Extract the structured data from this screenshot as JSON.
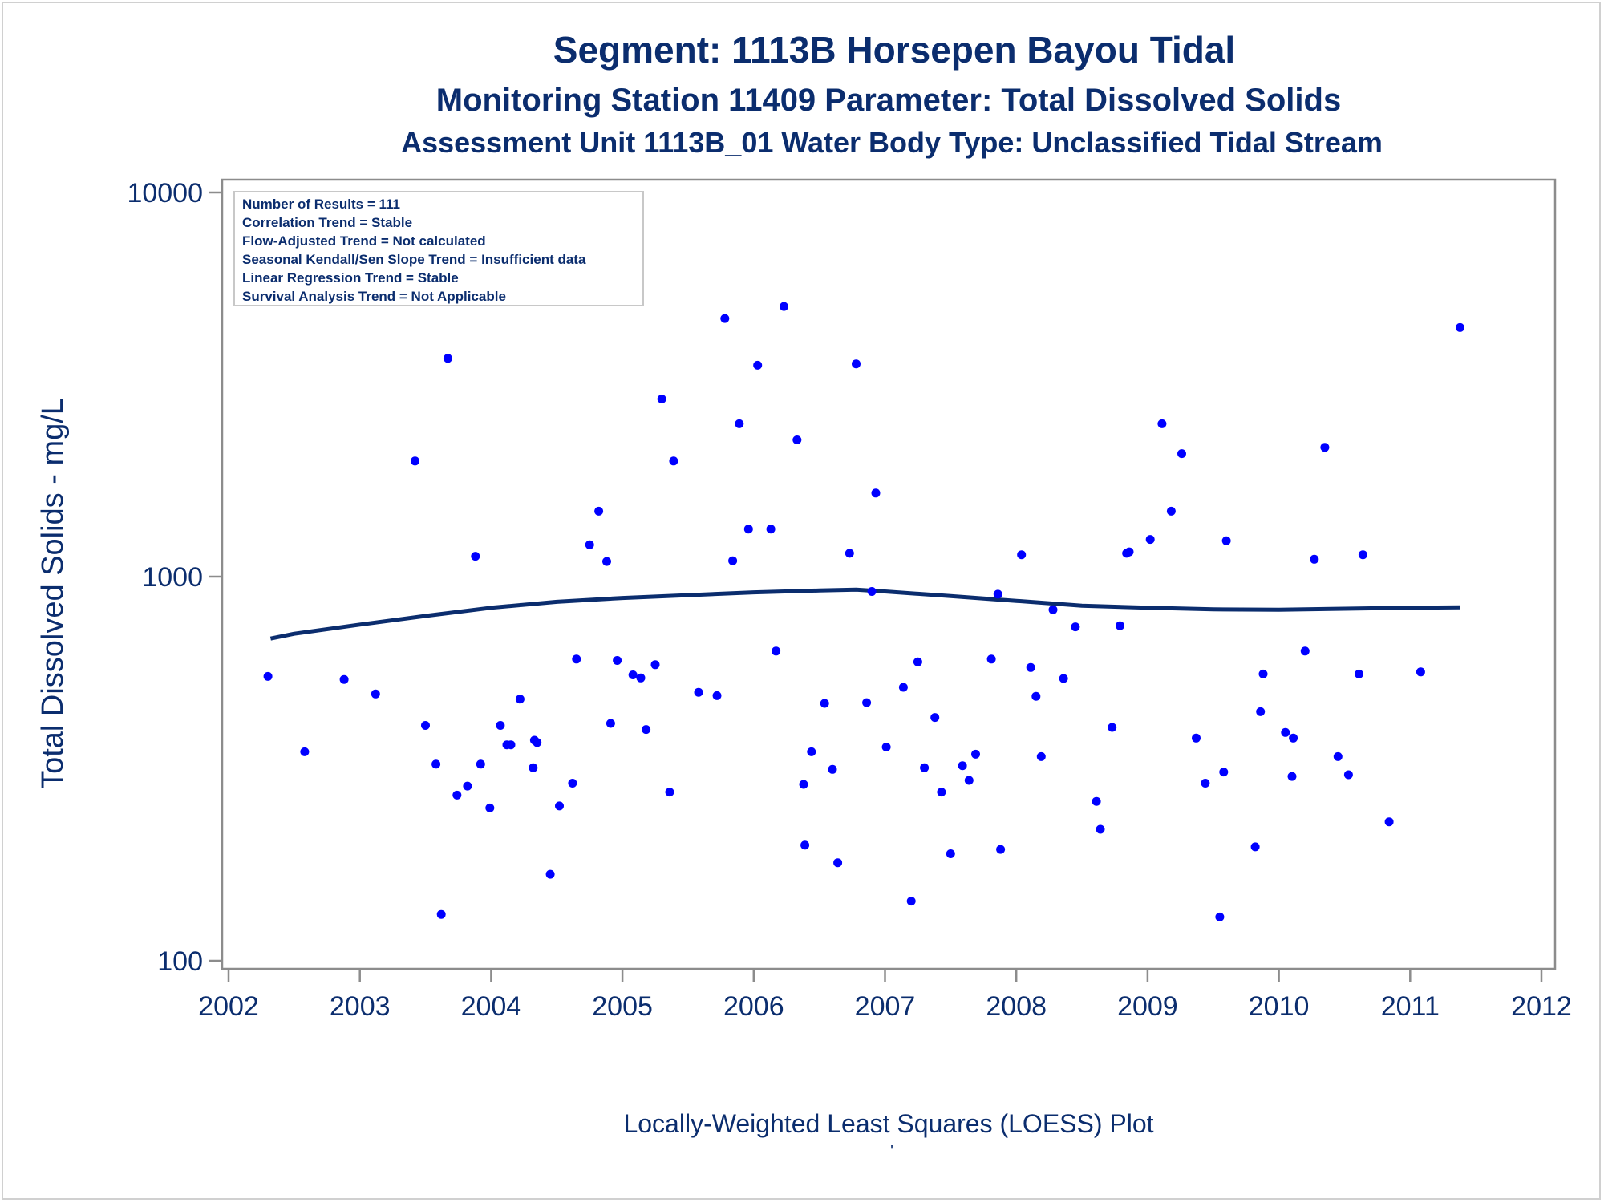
{
  "chart_data": {
    "type": "scatter",
    "title": "Segment: 1113B  Horsepen Bayou Tidal",
    "subtitle": "Monitoring Station 11409 Parameter: Total Dissolved Solids",
    "subtitle2": "Assessment Unit 1113B_01   Water Body Type: Unclassified Tidal Stream",
    "xlabel": "Locally-Weighted Least Squares (LOESS) Plot",
    "ylabel": "Total Dissolved Solids - mg/L",
    "yscale": "log",
    "xlim": [
      2002,
      2012
    ],
    "ylim": [
      100,
      10000
    ],
    "x_ticks": [
      "2002",
      "2003",
      "2004",
      "2005",
      "2006",
      "2007",
      "2008",
      "2009",
      "2010",
      "2011",
      "2012"
    ],
    "y_ticks": [
      {
        "value": 100,
        "label": "100"
      },
      {
        "value": 1000,
        "label": "1000"
      },
      {
        "value": 10000,
        "label": "10000"
      }
    ],
    "grid": false,
    "stats_box": {
      "placement": "top-left",
      "lines": [
        "Number of Results = 111",
        "Correlation Trend = Stable",
        "Flow-Adjusted Trend = Not calculated",
        "Seasonal Kendall/Sen Slope Trend = Insufficient data",
        "Linear Regression Trend = Stable",
        "Survival Analysis Trend = Not Applicable"
      ]
    },
    "colors": {
      "points": "#0000ff",
      "loess": "#0b2d6e",
      "text": "#0b2d6e",
      "frame": "#8c8c8c"
    },
    "points": [
      [
        2002.3,
        550
      ],
      [
        2002.58,
        350
      ],
      [
        2002.88,
        540
      ],
      [
        2003.12,
        495
      ],
      [
        2003.42,
        2000
      ],
      [
        2003.5,
        410
      ],
      [
        2003.58,
        325
      ],
      [
        2003.62,
        132
      ],
      [
        2003.67,
        3700
      ],
      [
        2003.74,
        270
      ],
      [
        2003.82,
        285
      ],
      [
        2003.88,
        1130
      ],
      [
        2003.92,
        325
      ],
      [
        2003.99,
        250
      ],
      [
        2004.07,
        410
      ],
      [
        2004.12,
        365
      ],
      [
        2004.15,
        365
      ],
      [
        2004.22,
        480
      ],
      [
        2004.32,
        318
      ],
      [
        2004.33,
        375
      ],
      [
        2004.35,
        370
      ],
      [
        2004.45,
        168
      ],
      [
        2004.52,
        253
      ],
      [
        2004.62,
        290
      ],
      [
        2004.65,
        610
      ],
      [
        2004.75,
        1210
      ],
      [
        2004.82,
        1480
      ],
      [
        2004.88,
        1095
      ],
      [
        2004.91,
        415
      ],
      [
        2004.96,
        605
      ],
      [
        2005.08,
        555
      ],
      [
        2005.14,
        545
      ],
      [
        2005.18,
        400
      ],
      [
        2005.25,
        590
      ],
      [
        2005.3,
        2900
      ],
      [
        2005.36,
        275
      ],
      [
        2005.39,
        2000
      ],
      [
        2005.58,
        500
      ],
      [
        2005.72,
        490
      ],
      [
        2005.78,
        4700
      ],
      [
        2005.84,
        1100
      ],
      [
        2005.89,
        2500
      ],
      [
        2005.96,
        1330
      ],
      [
        2006.03,
        3550
      ],
      [
        2006.13,
        1330
      ],
      [
        2006.17,
        640
      ],
      [
        2006.23,
        5050
      ],
      [
        2006.33,
        2270
      ],
      [
        2006.38,
        288
      ],
      [
        2006.39,
        200
      ],
      [
        2006.44,
        350
      ],
      [
        2006.54,
        468
      ],
      [
        2006.6,
        315
      ],
      [
        2006.64,
        180
      ],
      [
        2006.73,
        1150
      ],
      [
        2006.78,
        3580
      ],
      [
        2006.86,
        470
      ],
      [
        2006.9,
        915
      ],
      [
        2006.93,
        1650
      ],
      [
        2007.01,
        360
      ],
      [
        2007.14,
        515
      ],
      [
        2007.2,
        143
      ],
      [
        2007.25,
        600
      ],
      [
        2007.3,
        318
      ],
      [
        2007.38,
        430
      ],
      [
        2007.43,
        275
      ],
      [
        2007.5,
        190
      ],
      [
        2007.59,
        322
      ],
      [
        2007.64,
        295
      ],
      [
        2007.69,
        345
      ],
      [
        2007.81,
        610
      ],
      [
        2007.86,
        900
      ],
      [
        2007.88,
        195
      ],
      [
        2008.04,
        1140
      ],
      [
        2008.11,
        580
      ],
      [
        2008.15,
        488
      ],
      [
        2008.19,
        340
      ],
      [
        2008.28,
        820
      ],
      [
        2008.36,
        543
      ],
      [
        2008.45,
        740
      ],
      [
        2008.61,
        260
      ],
      [
        2008.64,
        220
      ],
      [
        2008.73,
        405
      ],
      [
        2008.79,
        745
      ],
      [
        2008.84,
        1150
      ],
      [
        2008.86,
        1160
      ],
      [
        2009.02,
        1250
      ],
      [
        2009.11,
        2500
      ],
      [
        2009.18,
        1480
      ],
      [
        2009.26,
        2090
      ],
      [
        2009.37,
        380
      ],
      [
        2009.44,
        290
      ],
      [
        2009.55,
        130
      ],
      [
        2009.58,
        310
      ],
      [
        2009.6,
        1240
      ],
      [
        2009.82,
        198
      ],
      [
        2009.86,
        445
      ],
      [
        2009.88,
        558
      ],
      [
        2010.05,
        393
      ],
      [
        2010.1,
        302
      ],
      [
        2010.11,
        380
      ],
      [
        2010.2,
        640
      ],
      [
        2010.27,
        1110
      ],
      [
        2010.35,
        2170
      ],
      [
        2010.45,
        340
      ],
      [
        2010.53,
        305
      ],
      [
        2010.61,
        558
      ],
      [
        2010.64,
        1140
      ],
      [
        2010.84,
        230
      ],
      [
        2011.08,
        565
      ],
      [
        2011.38,
        4450
      ]
    ],
    "loess": [
      [
        2002.32,
        690
      ],
      [
        2002.5,
        710
      ],
      [
        2003.0,
        750
      ],
      [
        2003.5,
        790
      ],
      [
        2004.0,
        830
      ],
      [
        2004.5,
        860
      ],
      [
        2005.0,
        880
      ],
      [
        2005.5,
        895
      ],
      [
        2006.0,
        910
      ],
      [
        2006.5,
        920
      ],
      [
        2006.78,
        925
      ],
      [
        2007.0,
        915
      ],
      [
        2007.5,
        890
      ],
      [
        2008.0,
        865
      ],
      [
        2008.5,
        840
      ],
      [
        2009.0,
        830
      ],
      [
        2009.5,
        822
      ],
      [
        2010.0,
        820
      ],
      [
        2010.5,
        825
      ],
      [
        2011.0,
        830
      ],
      [
        2011.38,
        832
      ]
    ]
  }
}
